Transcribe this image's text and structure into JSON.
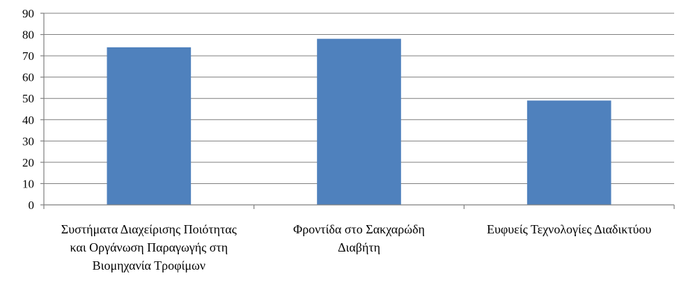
{
  "chart_data": {
    "type": "bar",
    "title": "",
    "xlabel": "",
    "ylabel": "",
    "categories": [
      [
        "Συστήματα Διαχείρισης Ποιότητας",
        "και Οργάνωση Παραγωγής στη",
        "Βιομηχανία Τροφίμων"
      ],
      [
        "Φροντίδα στο Σακχαρώδη",
        "Διαβήτη"
      ],
      [
        "Ευφυείς Τεχνολογίες Διαδικτύου"
      ]
    ],
    "values": [
      74,
      78,
      49
    ],
    "ylim": [
      0,
      90
    ],
    "yticks": [
      0,
      10,
      20,
      30,
      40,
      50,
      60,
      70,
      80,
      90
    ],
    "grid": true,
    "legend": "none",
    "bar_color": "#4f81bd"
  }
}
